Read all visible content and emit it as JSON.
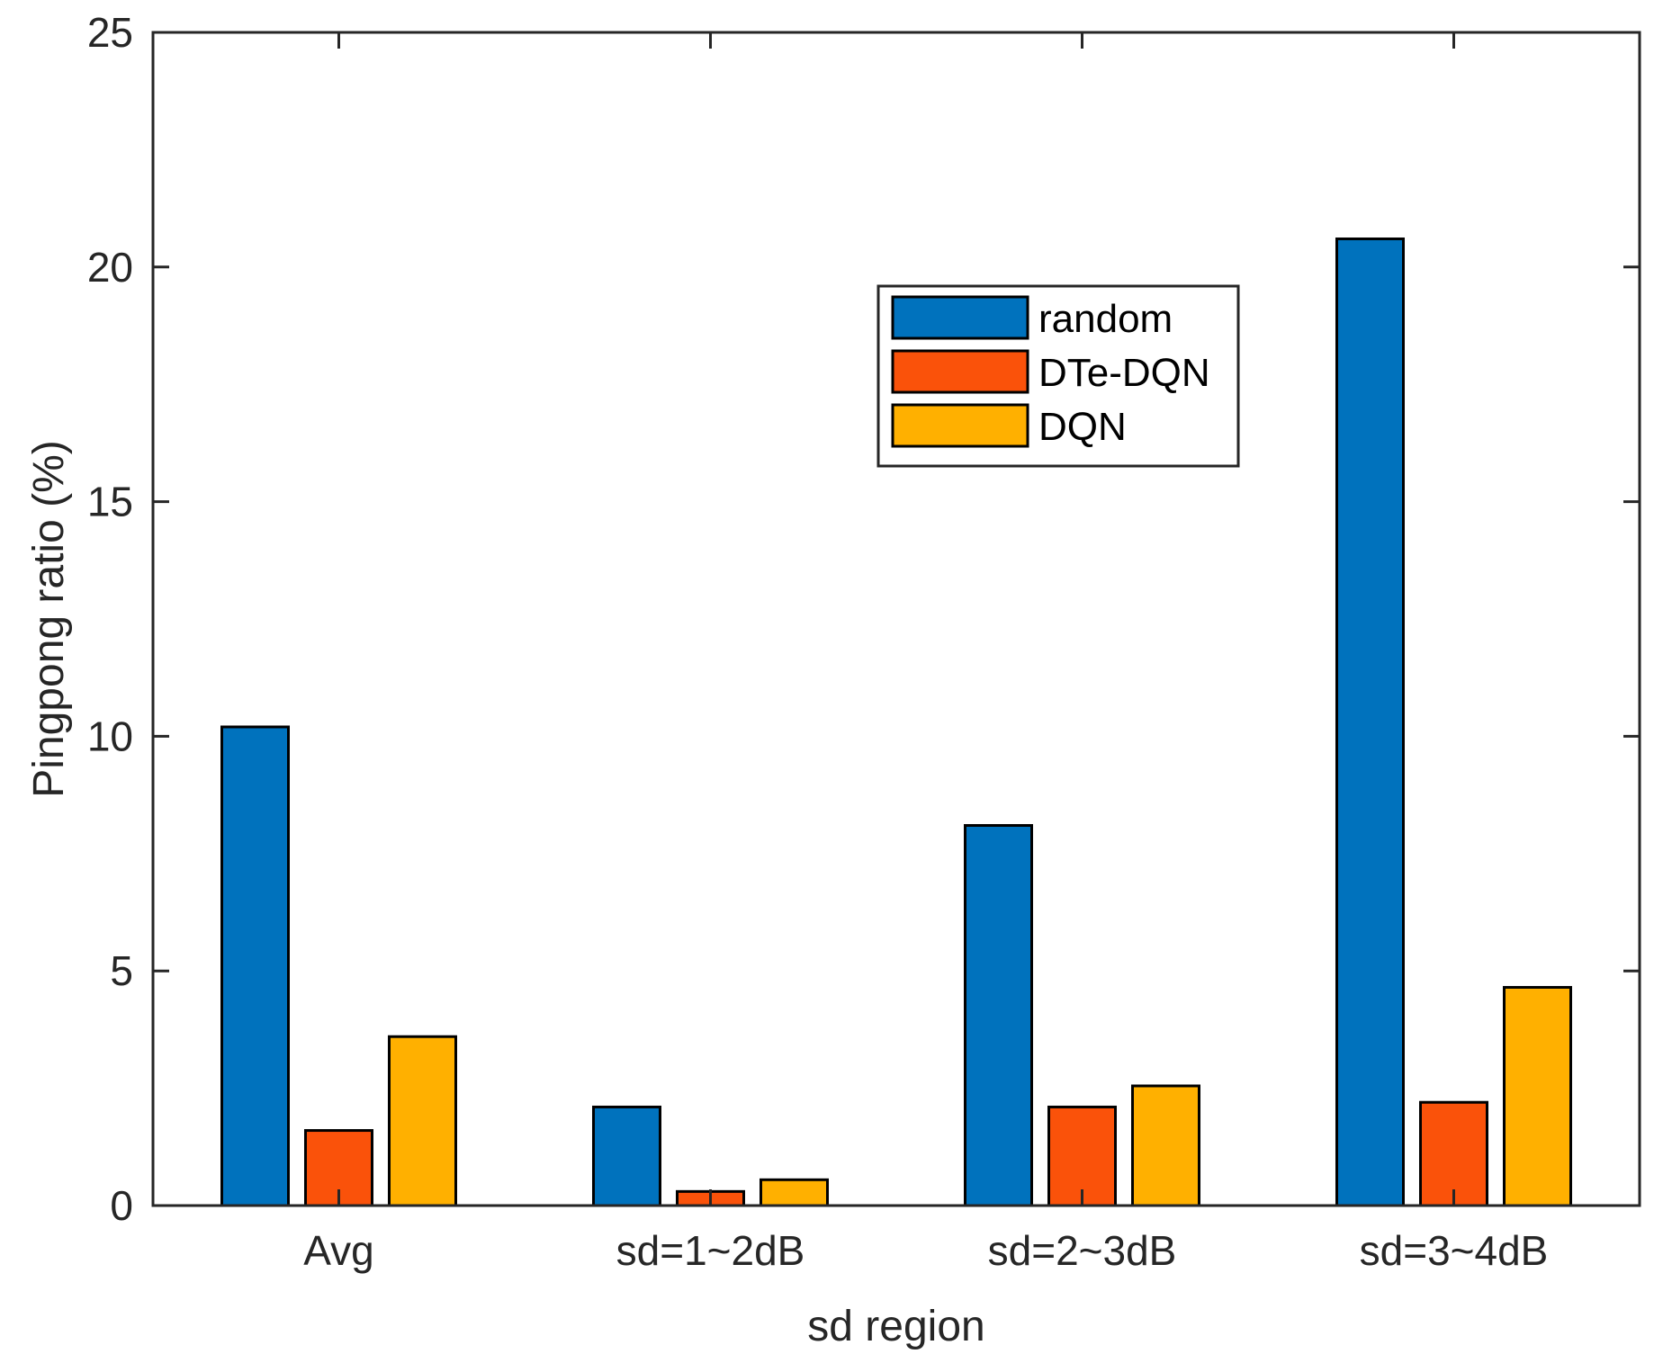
{
  "chart_data": {
    "type": "bar",
    "title": "",
    "xlabel": "sd region",
    "ylabel": "Pingpong ratio (%)",
    "categories": [
      "Avg",
      "sd=1~2dB",
      "sd=2~3dB",
      "sd=3~4dB"
    ],
    "ylim": [
      0,
      25
    ],
    "yticks": [
      0,
      5,
      10,
      15,
      20,
      25
    ],
    "grid": false,
    "legend_position": "upper-center",
    "series": [
      {
        "name": "random",
        "color": "#0072BD",
        "values": [
          10.2,
          2.1,
          8.1,
          20.6
        ]
      },
      {
        "name": "DTe-DQN",
        "color": "#FA520A",
        "values": [
          1.6,
          0.3,
          2.1,
          2.2
        ]
      },
      {
        "name": "DQN",
        "color": "#FFB000",
        "values": [
          3.6,
          0.55,
          2.55,
          4.65
        ]
      }
    ]
  }
}
